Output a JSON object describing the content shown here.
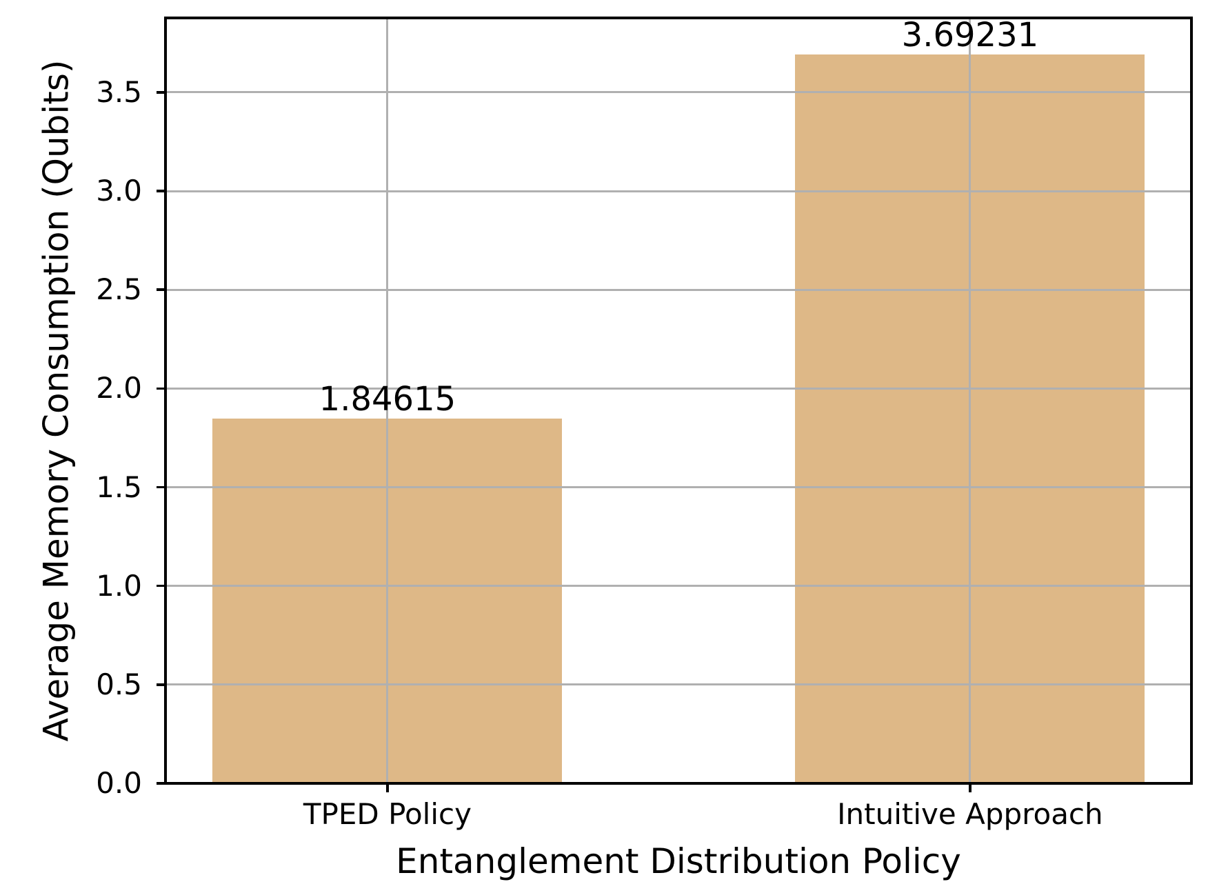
{
  "chart_data": {
    "type": "bar",
    "title": "",
    "xlabel": "Entanglement Distribution Policy",
    "ylabel": "Average Memory Consumption (Qubits)",
    "categories": [
      "TPED Policy",
      "Intuitive Approach"
    ],
    "values": [
      1.84615,
      3.69231
    ],
    "value_labels": [
      "1.84615",
      "3.69231"
    ],
    "x_positions": [
      0,
      1
    ],
    "bar_width": 0.6,
    "xlim": [
      -0.381,
      1.38
    ],
    "ylim": [
      0,
      3.877
    ],
    "yticks": [
      0.0,
      0.5,
      1.0,
      1.5,
      2.0,
      2.5,
      3.0,
      3.5
    ],
    "ytick_labels": [
      "0.0",
      "0.5",
      "1.0",
      "1.5",
      "2.0",
      "2.5",
      "3.0",
      "3.5"
    ],
    "grid": true,
    "grid_on_top_of_bars": true,
    "legend": null,
    "colors": {
      "bar": "#deb887",
      "grid": "#b0b0b0",
      "axis": "#000000",
      "text": "#000000",
      "background": "#ffffff"
    }
  }
}
